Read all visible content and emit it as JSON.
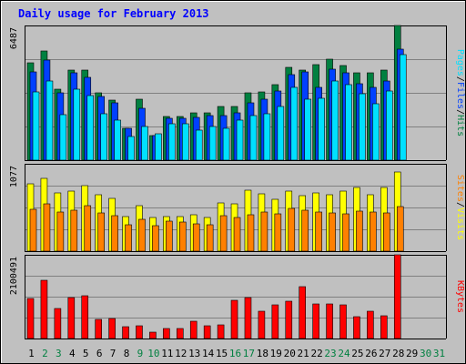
{
  "title": "Daily usage for February 2013",
  "chart_data": {
    "type": "bar",
    "title": "Daily usage for February 2013",
    "x": [
      1,
      2,
      3,
      4,
      5,
      6,
      7,
      8,
      9,
      10,
      11,
      12,
      13,
      14,
      15,
      16,
      17,
      18,
      19,
      20,
      21,
      22,
      23,
      24,
      25,
      26,
      27,
      28,
      29,
      30,
      31
    ],
    "weekend_days": [
      2,
      3,
      9,
      10,
      16,
      17,
      23,
      24,
      30,
      31
    ],
    "empty_days": [
      29,
      30,
      31
    ],
    "panels": [
      {
        "name": "hits",
        "max_label": "6487",
        "ylim": [
          0,
          6487
        ],
        "legend": [
          "Pages",
          "/",
          "Files",
          "/",
          "Hits"
        ],
        "series": [
          {
            "name": "Hits",
            "color": "#008040",
            "values": [
              4700,
              5250,
              3400,
              4350,
              4350,
              3250,
              2900,
              1550,
              2950,
              1200,
              2120,
              2120,
              2300,
              2300,
              2600,
              2600,
              3250,
              3270,
              3650,
              4450,
              4350,
              4600,
              4850,
              4550,
              4200,
              4200,
              4350,
              6487
            ]
          },
          {
            "name": "Files",
            "color": "#0040ff",
            "values": [
              4250,
              4820,
              3250,
              4200,
              4000,
              3050,
              2750,
              1550,
              2500,
              1200,
              2000,
              2000,
              2050,
              2150,
              2150,
              2300,
              2750,
              2950,
              3350,
              4100,
              4250,
              3500,
              4400,
              4200,
              3700,
              3500,
              3800,
              5350
            ]
          },
          {
            "name": "Pages",
            "color": "#00e0ff",
            "values": [
              3300,
              3800,
              2200,
              3400,
              3120,
              2250,
              1950,
              1150,
              1600,
              1250,
              1750,
              1750,
              1450,
              1620,
              1520,
              1950,
              2150,
              2250,
              2600,
              3500,
              2950,
              3000,
              3800,
              3650,
              3200,
              2700,
              3350,
              5100
            ]
          }
        ]
      },
      {
        "name": "visits",
        "max_label": "1077",
        "ylim": [
          0,
          1077
        ],
        "legend": [
          "Sites",
          "/",
          "Visits"
        ],
        "series": [
          {
            "name": "Visits",
            "color": "#ffff00",
            "values": [
              830,
              900,
              720,
              740,
              810,
              690,
              650,
              430,
              560,
              410,
              430,
              430,
              450,
              420,
              600,
              580,
              750,
              710,
              640,
              740,
              680,
              720,
              700,
              740,
              780,
              700,
              780,
              972
            ]
          },
          {
            "name": "Sites",
            "color": "#ff8000",
            "values": [
              520,
              580,
              480,
              500,
              560,
              470,
              440,
              320,
              390,
              310,
              370,
              360,
              340,
              330,
              440,
              420,
              450,
              480,
              460,
              530,
              510,
              480,
              470,
              460,
              490,
              480,
              470,
              550
            ]
          }
        ]
      },
      {
        "name": "kbytes",
        "max_label": "2100491",
        "ylim": [
          0,
          2100491
        ],
        "legend": [
          "KBytes"
        ],
        "series": [
          {
            "name": "KBytes",
            "color": "#ff0000",
            "values": [
              1000000,
              1470000,
              760000,
              1030000,
              1080000,
              480000,
              510000,
              290000,
              330000,
              170000,
              260000,
              260000,
              430000,
              330000,
              350000,
              960000,
              1020000,
              680000,
              840000,
              940000,
              1300000,
              860000,
              860000,
              850000,
              540000,
              690000,
              570000,
              2100491
            ]
          }
        ]
      }
    ]
  }
}
